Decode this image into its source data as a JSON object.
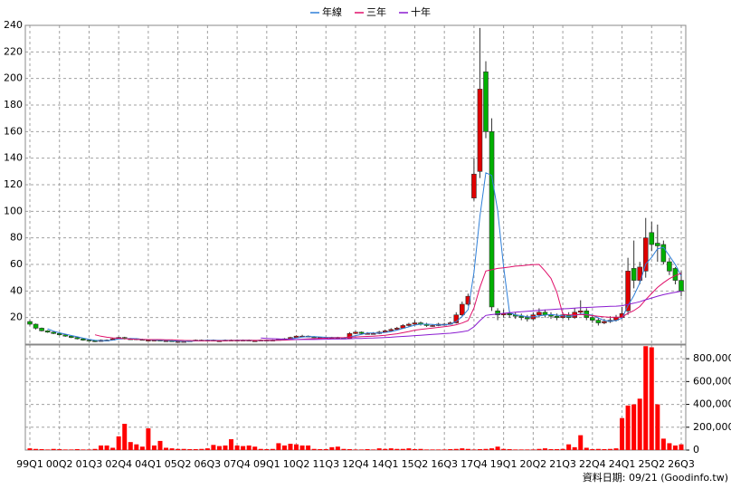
{
  "chart_data": {
    "type": "candlestick",
    "legend": "top",
    "grid": true,
    "source": "資料日期: 09/21  (Goodinfo.tw)",
    "categories": [
      "99Q1",
      null,
      null,
      null,
      null,
      "00Q2",
      null,
      null,
      null,
      null,
      "01Q3",
      null,
      null,
      null,
      null,
      "02Q4",
      null,
      null,
      null,
      null,
      "04Q1",
      null,
      null,
      null,
      null,
      "05Q2",
      null,
      null,
      null,
      null,
      "06Q3",
      null,
      null,
      null,
      null,
      "07Q4",
      null,
      null,
      null,
      null,
      "09Q1",
      null,
      null,
      null,
      null,
      "10Q2",
      null,
      null,
      null,
      null,
      "11Q3",
      null,
      null,
      null,
      null,
      "12Q4",
      null,
      null,
      null,
      null,
      "14Q1",
      null,
      null,
      null,
      null,
      "15Q2",
      null,
      null,
      null,
      null,
      "16Q3",
      null,
      null,
      null,
      null,
      "17Q4",
      null,
      null,
      null,
      null,
      "19Q1",
      null,
      null,
      null,
      null,
      "20Q2",
      null,
      null,
      null,
      null,
      "21Q3",
      null,
      null,
      null,
      null,
      "22Q4",
      null,
      null,
      null,
      null,
      "24Q1",
      null,
      null,
      null,
      null,
      "25Q2",
      null,
      null,
      null,
      null,
      "26Q3"
    ],
    "open": [
      17,
      15,
      12,
      10,
      9,
      8,
      7,
      6,
      5,
      4,
      3,
      2.5,
      2,
      3,
      3,
      4,
      5,
      4,
      4,
      3.5,
      3,
      3,
      3,
      2.5,
      2.5,
      2,
      2,
      2,
      2.5,
      3,
      3,
      3,
      2.5,
      2.5,
      3,
      3,
      3,
      3,
      2.5,
      2.5,
      3,
      3,
      3,
      3.5,
      4,
      5,
      6,
      6,
      5.5,
      5,
      5,
      5,
      5,
      4.5,
      4,
      8,
      9,
      8,
      8,
      8,
      9,
      10,
      11,
      12,
      14,
      15,
      16,
      15,
      14,
      14,
      15,
      15,
      16,
      22,
      30,
      110,
      130,
      205,
      160,
      25,
      22,
      23,
      22,
      21,
      20,
      19,
      22,
      24,
      22,
      21,
      20,
      22,
      20,
      24,
      25,
      20,
      18,
      16,
      17,
      18,
      20,
      25,
      57,
      48,
      55,
      84,
      76,
      75,
      62,
      57,
      48
    ],
    "high": [
      18,
      15.5,
      12.5,
      10.5,
      9.5,
      8.5,
      7.5,
      6.5,
      5.5,
      4.5,
      3.5,
      3,
      3.5,
      3.5,
      4.5,
      5.5,
      5.5,
      4.5,
      4.5,
      4,
      3.5,
      3.5,
      3.5,
      3,
      3,
      2.5,
      2.5,
      3,
      3.5,
      3.5,
      3.5,
      3.5,
      3,
      3.5,
      3.5,
      3.5,
      3.5,
      3.5,
      3,
      3.5,
      3.5,
      3.5,
      4,
      4.5,
      5.5,
      6.5,
      7,
      6.5,
      6,
      5.5,
      5.5,
      5.5,
      5.5,
      5,
      9,
      10,
      9.5,
      9,
      9,
      10,
      11,
      12,
      13,
      15,
      16,
      18,
      17,
      16,
      15,
      16,
      16,
      17,
      24,
      32,
      38,
      140,
      238,
      213,
      170,
      27,
      26,
      25,
      24,
      23,
      22,
      24,
      27,
      26,
      24,
      23,
      24,
      24,
      27,
      33,
      27,
      22,
      20,
      19,
      21,
      22,
      28,
      65,
      78,
      62,
      95,
      92,
      90,
      78,
      65,
      58,
      55
    ],
    "low": [
      14,
      11,
      9.5,
      8.5,
      7.5,
      6.5,
      5.5,
      4.5,
      3.5,
      2.5,
      2,
      1.5,
      1.8,
      2.5,
      2.8,
      3.5,
      3.5,
      3.5,
      3,
      2.8,
      2.8,
      2.7,
      2.2,
      2.2,
      1.8,
      1.8,
      1.8,
      1.9,
      2.3,
      2.7,
      2.7,
      2.3,
      2.2,
      2.3,
      2.7,
      2.7,
      2.7,
      2.3,
      2.2,
      2.3,
      2.7,
      2.7,
      2.8,
      3.2,
      3.8,
      4.6,
      5.5,
      5.2,
      4.7,
      4.6,
      4.6,
      4.6,
      4.2,
      3.8,
      3.8,
      7.5,
      7.5,
      7.5,
      7.5,
      7.5,
      8.5,
      9.5,
      10.5,
      11.5,
      13,
      14,
      14,
      13,
      13,
      13.5,
      14,
      14.5,
      15.5,
      21,
      29,
      108,
      125,
      155,
      25,
      18,
      20,
      20,
      19,
      18,
      17,
      18,
      20,
      20,
      19,
      18,
      19,
      18,
      19,
      22,
      18,
      16,
      14,
      15,
      16,
      17,
      19,
      22,
      42,
      45,
      50,
      70,
      62,
      60,
      52,
      45,
      36
    ],
    "close": [
      15,
      12,
      10,
      9,
      8,
      7,
      6,
      5,
      4,
      3,
      2.5,
      2,
      3,
      3,
      4,
      5,
      4,
      4,
      3.5,
      3,
      3,
      3,
      2.5,
      2.5,
      2,
      2,
      2,
      2.5,
      3,
      3,
      3,
      2.5,
      2.5,
      3,
      3,
      3,
      3,
      2.5,
      2.5,
      3,
      3,
      3,
      3.5,
      4,
      5,
      6,
      6,
      5.5,
      5,
      5,
      5,
      5,
      4.5,
      4,
      8,
      9,
      8,
      8,
      8,
      9,
      10,
      11,
      12,
      14,
      15,
      16,
      15,
      14,
      14,
      15,
      15,
      16,
      22,
      30,
      36,
      128,
      192,
      160,
      28,
      22,
      23,
      22,
      21,
      20,
      19,
      22,
      24,
      22,
      21,
      20,
      22,
      20,
      24,
      25,
      20,
      18,
      16,
      17,
      18,
      20,
      23,
      55,
      48,
      58,
      80,
      75,
      74,
      62,
      55,
      48,
      40
    ],
    "up_color": "#e00000",
    "down_color": "#00b000",
    "series": [
      {
        "name": "年線",
        "color": "#2f7fd8",
        "values": [
          null,
          null,
          null,
          11.5,
          9.75,
          8.5,
          7.5,
          6.5,
          5.5,
          4.5,
          3.6,
          2.9,
          2.6,
          2.6,
          3,
          3.8,
          4,
          4.3,
          4.1,
          3.6,
          3.4,
          3.1,
          2.9,
          2.8,
          2.5,
          2.3,
          2.1,
          2.1,
          2.4,
          2.6,
          2.9,
          2.9,
          2.8,
          2.8,
          2.8,
          2.9,
          3,
          2.9,
          2.8,
          2.8,
          2.8,
          2.9,
          3.1,
          3.4,
          3.9,
          4.6,
          5.3,
          5.6,
          5.6,
          5.4,
          5.1,
          5,
          4.9,
          4.6,
          5.4,
          6.4,
          7.3,
          8.3,
          8.3,
          8.3,
          8.8,
          9.5,
          10.5,
          11.8,
          13,
          14.3,
          15,
          15,
          14.8,
          14.5,
          14.5,
          15,
          17,
          20.8,
          26,
          54,
          96.5,
          129,
          127,
          100.5,
          58.3,
          23.8,
          22,
          21.5,
          20.5,
          20.5,
          21.3,
          21.8,
          22.3,
          21.8,
          21.3,
          20.8,
          21.5,
          22.8,
          22.3,
          21.8,
          19.8,
          17.8,
          17.3,
          17.8,
          19.5,
          29,
          36.5,
          46,
          60.3,
          65.3,
          71.8,
          72.8,
          66.5,
          59.8,
          51.3
        ]
      },
      {
        "name": "三年",
        "color": "#e0106a",
        "values": [
          null,
          null,
          null,
          null,
          null,
          null,
          null,
          null,
          null,
          null,
          null,
          7,
          5.9,
          5.2,
          4.7,
          4.4,
          4.1,
          3.8,
          3.6,
          3.5,
          3.4,
          3.4,
          3.4,
          3.3,
          3.2,
          3,
          2.8,
          2.7,
          2.6,
          2.6,
          2.6,
          2.6,
          2.6,
          2.6,
          2.7,
          2.7,
          2.8,
          2.8,
          2.8,
          2.8,
          2.8,
          2.8,
          2.9,
          3,
          3.2,
          3.4,
          3.7,
          3.9,
          4.1,
          4.3,
          4.5,
          4.7,
          4.8,
          4.9,
          5.2,
          5.4,
          5.6,
          5.8,
          6,
          6.3,
          6.7,
          7.2,
          7.8,
          8.6,
          9.5,
          10.5,
          11.1,
          11.6,
          12.1,
          12.6,
          13.1,
          13.7,
          14.6,
          15.9,
          17.7,
          27.2,
          42.8,
          55,
          56,
          57,
          57.5,
          58,
          58.7,
          59,
          59.5,
          59.8,
          60,
          55,
          49.5,
          39,
          22.5,
          22,
          22,
          22.3,
          22,
          21.5,
          21,
          20.5,
          20.2,
          20.3,
          20.3,
          23.2,
          25.2,
          28.3,
          33.5,
          38.2,
          42.7,
          46.2,
          49.3,
          51.6,
          53.3
        ]
      },
      {
        "name": "十年",
        "color": "#8a1ad0",
        "values": [
          null,
          null,
          null,
          null,
          null,
          null,
          null,
          null,
          null,
          null,
          null,
          null,
          null,
          null,
          null,
          null,
          null,
          null,
          null,
          null,
          null,
          null,
          null,
          null,
          null,
          null,
          null,
          null,
          null,
          null,
          null,
          null,
          null,
          null,
          null,
          null,
          null,
          null,
          null,
          4.6,
          4.3,
          4.1,
          3.9,
          3.7,
          3.6,
          3.5,
          3.5,
          3.5,
          3.5,
          3.6,
          3.7,
          3.8,
          3.8,
          3.9,
          4,
          4.2,
          4.3,
          4.5,
          4.6,
          4.8,
          5,
          5.2,
          5.5,
          5.8,
          6.1,
          6.4,
          6.7,
          7,
          7.3,
          7.6,
          7.9,
          8.2,
          8.7,
          9.3,
          10.1,
          13,
          17.7,
          21.6,
          22.2,
          22.7,
          23.2,
          23.6,
          24,
          24.4,
          24.7,
          25,
          25.4,
          25.7,
          26,
          26.3,
          26.6,
          26.8,
          27.1,
          27.4,
          27.6,
          27.8,
          28,
          28.2,
          28.4,
          28.6,
          28.9,
          29.9,
          30.8,
          31.9,
          33.4,
          34.7,
          36.1,
          37.2,
          38.2,
          39.1,
          39.8
        ]
      }
    ],
    "ylim": [
      0,
      240
    ],
    "yticks": [
      20,
      40,
      60,
      80,
      100,
      120,
      140,
      160,
      180,
      200,
      220,
      240
    ],
    "volume": {
      "type": "bar",
      "color": "#ff0000",
      "values": [
        15000,
        10000,
        8000,
        5000,
        10000,
        8000,
        5000,
        5000,
        8000,
        5000,
        5000,
        10000,
        40000,
        40000,
        20000,
        120000,
        230000,
        70000,
        50000,
        30000,
        190000,
        40000,
        80000,
        20000,
        15000,
        10000,
        10000,
        8000,
        8000,
        10000,
        15000,
        45000,
        35000,
        40000,
        95000,
        40000,
        35000,
        40000,
        30000,
        10000,
        8000,
        10000,
        60000,
        40000,
        55000,
        50000,
        40000,
        40000,
        10000,
        8000,
        8000,
        25000,
        30000,
        10000,
        8000,
        5000,
        5000,
        8000,
        5000,
        15000,
        10000,
        15000,
        10000,
        10000,
        15000,
        8000,
        10000,
        5000,
        5000,
        5000,
        5000,
        8000,
        10000,
        15000,
        10000,
        5000,
        8000,
        10000,
        15000,
        30000,
        10000,
        8000,
        5000,
        5000,
        5000,
        5000,
        10000,
        15000,
        8000,
        8000,
        10000,
        50000,
        25000,
        130000,
        20000,
        8000,
        10000,
        8000,
        10000,
        15000,
        280000,
        390000,
        400000,
        450000,
        910000,
        900000,
        400000,
        100000,
        60000,
        40000,
        50000
      ],
      "ylim": [
        0,
        920000
      ],
      "yticks": [
        0,
        {
          "value": 200000,
          "label": "200,000"
        },
        {
          "value": 400000,
          "label": "400,000"
        },
        {
          "value": 600000,
          "label": "600,000"
        },
        {
          "value": 800000,
          "label": "800,000"
        }
      ]
    }
  }
}
